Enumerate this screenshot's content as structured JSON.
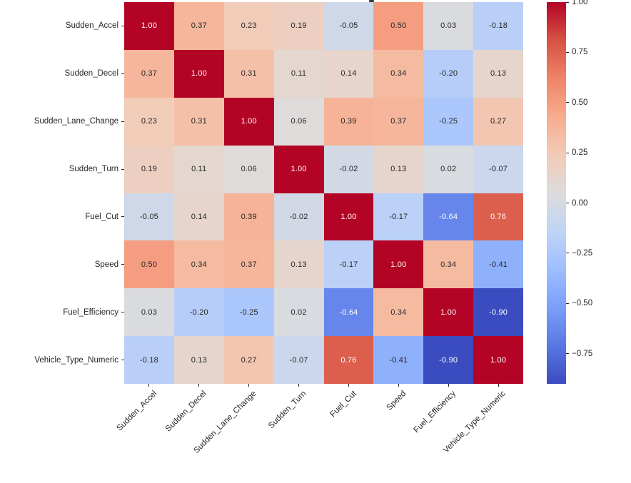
{
  "figure": {
    "background": "#ffffff",
    "text_color": "#262626",
    "annot_dark_color": "#262626",
    "annot_light_color": "#ffffff"
  },
  "chart_data": {
    "type": "heatmap",
    "categories": [
      "Sudden_Accel",
      "Sudden_Decel",
      "Sudden_Lane_Change",
      "Sudden_Turn",
      "Fuel_Cut",
      "Speed",
      "Fuel_Efficiency",
      "Vehicle_Type_Numeric"
    ],
    "matrix": [
      [
        1.0,
        0.37,
        0.23,
        0.19,
        -0.05,
        0.5,
        0.03,
        -0.18
      ],
      [
        0.37,
        1.0,
        0.31,
        0.11,
        0.14,
        0.34,
        -0.2,
        0.13
      ],
      [
        0.23,
        0.31,
        1.0,
        0.06,
        0.39,
        0.37,
        -0.25,
        0.27
      ],
      [
        0.19,
        0.11,
        0.06,
        1.0,
        -0.02,
        0.13,
        0.02,
        -0.07
      ],
      [
        -0.05,
        0.14,
        0.39,
        -0.02,
        1.0,
        -0.17,
        -0.64,
        0.76
      ],
      [
        0.5,
        0.34,
        0.37,
        0.13,
        -0.17,
        1.0,
        0.34,
        -0.41
      ],
      [
        0.03,
        -0.2,
        -0.25,
        0.02,
        -0.64,
        0.34,
        1.0,
        -0.9
      ],
      [
        -0.18,
        0.13,
        0.27,
        -0.07,
        0.76,
        -0.41,
        -0.9,
        1.0
      ]
    ],
    "vmin": -0.9,
    "vmax": 1.0,
    "value_format_decimals": 2,
    "colormap": "coolwarm",
    "colormap_stops": [
      "#3b4cc0",
      "#5977e3",
      "#7b9ff9",
      "#9ebeff",
      "#c0d4f5",
      "#dddcdc",
      "#f2cbb7",
      "#f7ac8e",
      "#ee8468",
      "#d65244",
      "#b40426"
    ],
    "colorbar": {
      "position": "right",
      "ticks": [
        {
          "value": 1.0,
          "label": "1.00"
        },
        {
          "value": 0.75,
          "label": "0.75"
        },
        {
          "value": 0.5,
          "label": "0.50"
        },
        {
          "value": 0.25,
          "label": "0.25"
        },
        {
          "value": 0.0,
          "label": "0.00"
        },
        {
          "value": -0.25,
          "label": "−0.25"
        },
        {
          "value": -0.5,
          "label": "−0.50"
        },
        {
          "value": -0.75,
          "label": "−0.75"
        }
      ]
    },
    "grid": false,
    "annotations": true,
    "x_tick_rotation_deg": 45
  }
}
